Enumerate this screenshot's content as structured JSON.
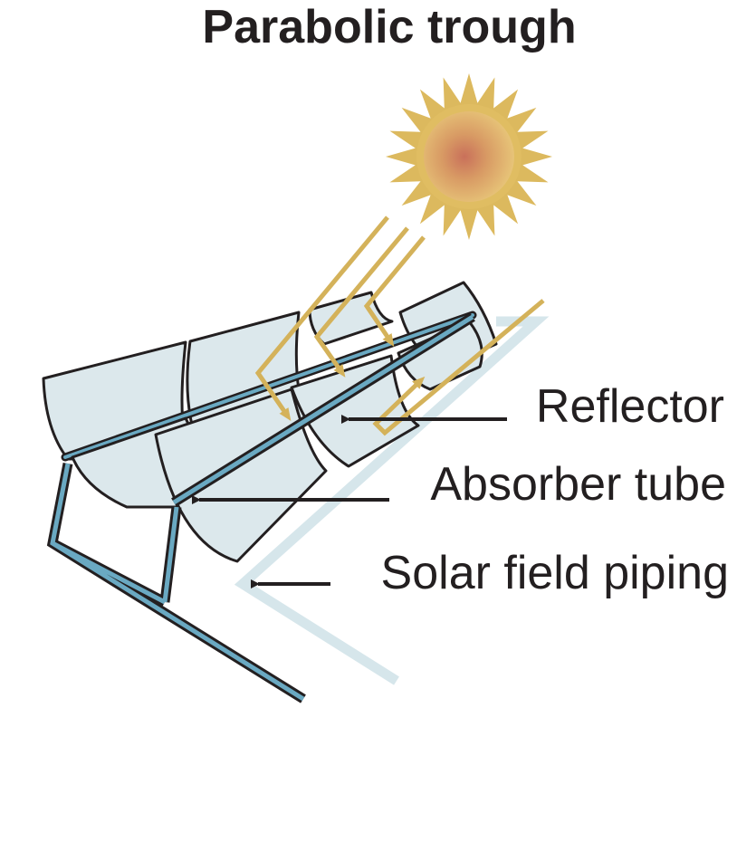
{
  "title": "Parabolic trough",
  "labels": {
    "reflector": "Reflector",
    "absorber_tube": "Absorber tube",
    "solar_field_piping": "Solar field piping"
  },
  "colors": {
    "background": "#ffffff",
    "text": "#231f20",
    "outline": "#231f20",
    "reflector_fill": "#dce8ec",
    "absorber_tube": "#6aa9c2",
    "piping_light": "#d6e6eb",
    "sunlight": "#d4b25a",
    "sun_rays": "#dcb95e",
    "sun_core": "#c9705a"
  },
  "icons": {
    "sun": "sun-icon",
    "arrows": "pointer-arrow-icon"
  }
}
